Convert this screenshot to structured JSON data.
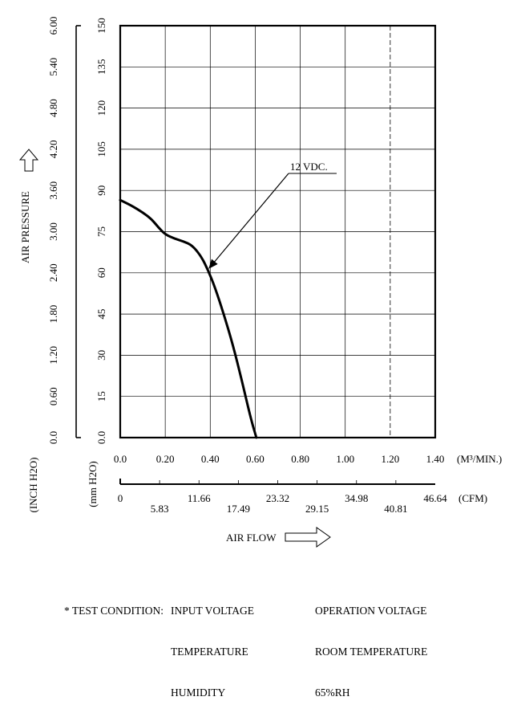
{
  "chart_data": {
    "type": "line",
    "y_left_outer": {
      "label": "AIR PRESSURE",
      "unit_label": "(INCH H2O)",
      "ticks": [
        "0.0",
        "0.60",
        "1.20",
        "1.80",
        "2.40",
        "3.00",
        "3.60",
        "4.20",
        "4.80",
        "5.40",
        "6.00"
      ]
    },
    "y_left_inner": {
      "unit_label": "(mm H2O)",
      "ticks": [
        "0.0",
        "15",
        "30",
        "45",
        "60",
        "75",
        "90",
        "105",
        "120",
        "135",
        "150"
      ],
      "ylim": [
        0,
        150
      ]
    },
    "x_primary": {
      "unit_label": "(M³/MIN.)",
      "ticks": [
        "0.0",
        "0.20",
        "0.40",
        "0.60",
        "0.80",
        "1.00",
        "1.20",
        "1.40"
      ],
      "xlim": [
        0,
        1.4
      ]
    },
    "x_secondary": {
      "unit_label": "(CFM)",
      "ticks": [
        "0",
        "5.83",
        "11.66",
        "17.49",
        "23.32",
        "29.15",
        "34.98",
        "40.81",
        "46.64"
      ]
    },
    "xlabel": "AIR FLOW",
    "grid": true,
    "series": [
      {
        "name": "12 VDC.",
        "x": [
          0.0,
          0.05,
          0.1,
          0.14,
          0.17,
          0.2,
          0.24,
          0.28,
          0.32,
          0.36,
          0.39,
          0.42,
          0.46,
          0.5,
          0.54,
          0.58,
          0.605
        ],
        "y": [
          86.5,
          84.5,
          82.0,
          79.5,
          76.5,
          74.0,
          72.5,
          71.5,
          70.0,
          66.0,
          61.0,
          55.0,
          45.0,
          34.0,
          21.0,
          7.0,
          0.0
        ]
      }
    ],
    "annotation": {
      "text": "12 VDC.",
      "points_to_x": 0.39,
      "points_to_y": 61.0
    }
  },
  "test_condition": {
    "lead": "* TEST CONDITION:",
    "rows": [
      {
        "param": "INPUT VOLTAGE",
        "value": "OPERATION VOLTAGE"
      },
      {
        "param": "TEMPERATURE",
        "value": "ROOM TEMPERATURE"
      },
      {
        "param": "HUMIDITY",
        "value": "65%RH"
      }
    ]
  }
}
